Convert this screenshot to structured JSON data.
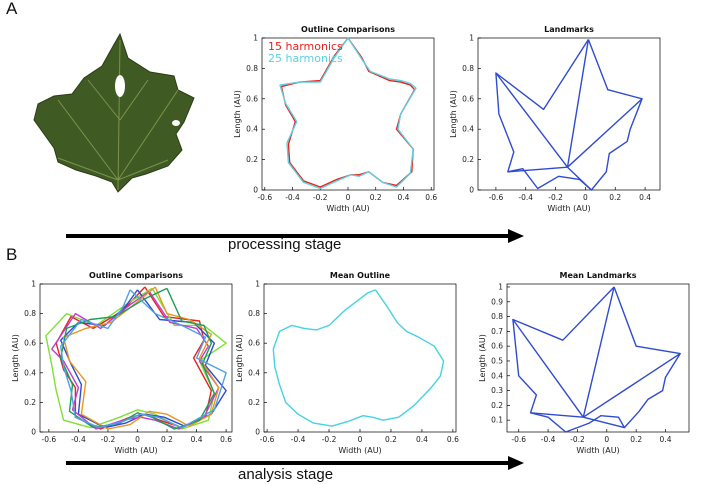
{
  "figure": {
    "panel_a_letter": "A",
    "panel_b_letter": "B",
    "stage_a_label": "processing stage",
    "stage_b_label": "analysis stage",
    "leaf_photo": "maple-leaf-photo",
    "colors": {
      "leaf_dark": "#3f5a22",
      "harmonic15": "#e8231e",
      "harmonic25": "#5ecfe0",
      "landmarks": "#2f4bd0",
      "mean_outline": "#45d3e0"
    }
  },
  "chart_data": [
    {
      "id": "outline-comparisons-a",
      "type": "line",
      "title": "Outline Comparisons",
      "xlabel": "Width (AU)",
      "ylabel": "Length (AU)",
      "xlim": [
        -0.62,
        0.62
      ],
      "ylim": [
        0,
        1
      ],
      "xticks": [
        -0.6,
        -0.4,
        -0.2,
        0,
        0.2,
        0.4,
        0.6
      ],
      "xtick_labels": [
        "-0.6",
        "-0.4",
        "-0.2",
        "0",
        "0.2",
        "0.4",
        "0.6"
      ],
      "yticks": [
        0,
        0.2,
        0.4,
        0.6,
        0.8,
        1
      ],
      "ytick_labels": [
        "0",
        "0.2",
        "0.4",
        "0.6",
        "0.8",
        "1"
      ],
      "grid": false,
      "legend": "top-left",
      "series": [
        {
          "name": "15 harmonics",
          "color": "#e8231e",
          "x": [
            0,
            0.1,
            0.15,
            0.3,
            0.38,
            0.45,
            0.48,
            0.38,
            0.35,
            0.47,
            0.46,
            0.35,
            0.25,
            0.15,
            0.08,
            0.02,
            -0.08,
            -0.2,
            -0.32,
            -0.42,
            -0.43,
            -0.38,
            -0.45,
            -0.48,
            -0.35,
            -0.2,
            -0.1,
            0
          ],
          "y": [
            1,
            0.87,
            0.78,
            0.72,
            0.71,
            0.69,
            0.66,
            0.5,
            0.4,
            0.27,
            0.12,
            0.03,
            0.05,
            0.12,
            0.1,
            0.1,
            0.07,
            0.02,
            0.06,
            0.18,
            0.3,
            0.45,
            0.56,
            0.68,
            0.71,
            0.72,
            0.88,
            1
          ]
        },
        {
          "name": "25 harmonics",
          "color": "#5ecfe0",
          "x": [
            0,
            0.1,
            0.16,
            0.3,
            0.38,
            0.45,
            0.49,
            0.38,
            0.36,
            0.47,
            0.45,
            0.35,
            0.25,
            0.15,
            0.08,
            0.02,
            -0.08,
            -0.2,
            -0.32,
            -0.43,
            -0.44,
            -0.37,
            -0.45,
            -0.49,
            -0.35,
            -0.2,
            -0.1,
            0
          ],
          "y": [
            1,
            0.86,
            0.78,
            0.73,
            0.72,
            0.7,
            0.67,
            0.5,
            0.4,
            0.27,
            0.11,
            0.02,
            0.05,
            0.12,
            0.09,
            0.1,
            0.06,
            0.01,
            0.05,
            0.18,
            0.31,
            0.45,
            0.57,
            0.69,
            0.71,
            0.71,
            0.87,
            1
          ]
        }
      ]
    },
    {
      "id": "landmarks-a",
      "type": "line",
      "title": "Landmarks",
      "xlabel": "Width (AU)",
      "ylabel": "Length (AU)",
      "xlim": [
        -0.72,
        0.5
      ],
      "ylim": [
        0,
        1
      ],
      "xticks": [
        -0.6,
        -0.4,
        -0.2,
        0,
        0.2,
        0.4
      ],
      "xtick_labels": [
        "-0.6",
        "-0.4",
        "-0.2",
        "0",
        "0.2",
        "0.4"
      ],
      "yticks": [
        0,
        0.2,
        0.4,
        0.6,
        0.8,
        1
      ],
      "ytick_labels": [
        "0",
        "0.2",
        "0.4",
        "0.6",
        "0.8",
        "1"
      ],
      "grid": false,
      "legend": "none",
      "series": [
        {
          "color": "#2f4bd0",
          "x": [
            0.02,
            0.15,
            0.38,
            0.3,
            0.28,
            0.16,
            0.14,
            0.04,
            -0.04,
            -0.18,
            -0.32,
            -0.42,
            -0.52,
            -0.48,
            -0.58,
            -0.6,
            -0.28,
            0.02
          ],
          "y": [
            0.99,
            0.66,
            0.6,
            0.4,
            0.32,
            0.24,
            0.12,
            0,
            0.07,
            0.09,
            0.01,
            0.14,
            0.12,
            0.25,
            0.5,
            0.77,
            0.53,
            0.99
          ]
        },
        {
          "color": "#2f4bd0",
          "x": [
            -0.12,
            0.02
          ],
          "y": [
            0.15,
            0.99
          ]
        },
        {
          "color": "#2f4bd0",
          "x": [
            -0.12,
            0.38
          ],
          "y": [
            0.15,
            0.6
          ]
        },
        {
          "color": "#2f4bd0",
          "x": [
            -0.12,
            -0.6
          ],
          "y": [
            0.15,
            0.77
          ]
        },
        {
          "color": "#2f4bd0",
          "x": [
            -0.12,
            -0.52
          ],
          "y": [
            0.15,
            0.12
          ]
        },
        {
          "color": "#2f4bd0",
          "x": [
            -0.12,
            0.04
          ],
          "y": [
            0.15,
            0
          ]
        }
      ]
    },
    {
      "id": "outline-comparisons-b",
      "type": "line",
      "title": "Outline Comparisons",
      "xlabel": "Width (AU)",
      "ylabel": "Length (AU)",
      "xlim": [
        -0.66,
        0.64
      ],
      "ylim": [
        0,
        1
      ],
      "xticks": [
        -0.6,
        -0.4,
        -0.2,
        0,
        0.2,
        0.4,
        0.6
      ],
      "xtick_labels": [
        "-0.6",
        "-0.4",
        "-0.2",
        "0",
        "0.2",
        "0.4",
        "0.6"
      ],
      "yticks": [
        0,
        0.2,
        0.4,
        0.6,
        0.8,
        1
      ],
      "ytick_labels": [
        "0",
        "0.2",
        "0.4",
        "0.6",
        "0.8",
        "1"
      ],
      "grid": false,
      "legend": "none",
      "series": [
        {
          "color": "#e8231e",
          "x": [
            0.05,
            0.18,
            0.42,
            0.45,
            0.38,
            0.5,
            0.46,
            0.3,
            0.15,
            0.05,
            -0.05,
            -0.25,
            -0.42,
            -0.42,
            -0.5,
            -0.55,
            -0.45,
            -0.3,
            -0.1,
            0.05
          ],
          "y": [
            0.98,
            0.78,
            0.75,
            0.62,
            0.5,
            0.28,
            0.1,
            0.03,
            0.08,
            0.12,
            0.1,
            0.02,
            0.1,
            0.3,
            0.42,
            0.6,
            0.78,
            0.7,
            0.82,
            0.98
          ]
        },
        {
          "color": "#7ee035",
          "x": [
            0.1,
            0.25,
            0.45,
            0.6,
            0.42,
            0.52,
            0.48,
            0.3,
            0.12,
            0.0,
            -0.12,
            -0.32,
            -0.5,
            -0.55,
            -0.58,
            -0.62,
            -0.48,
            -0.28,
            -0.05,
            0.1
          ],
          "y": [
            0.97,
            0.72,
            0.72,
            0.6,
            0.48,
            0.26,
            0.08,
            0.02,
            0.12,
            0.15,
            0.1,
            0.03,
            0.08,
            0.28,
            0.45,
            0.65,
            0.8,
            0.72,
            0.88,
            0.97
          ]
        },
        {
          "color": "#2f4bd0",
          "x": [
            0.0,
            0.15,
            0.38,
            0.52,
            0.46,
            0.6,
            0.5,
            0.32,
            0.18,
            0.05,
            -0.08,
            -0.22,
            -0.4,
            -0.38,
            -0.45,
            -0.52,
            -0.4,
            -0.22,
            -0.08,
            0.0
          ],
          "y": [
            0.96,
            0.76,
            0.74,
            0.6,
            0.45,
            0.28,
            0.12,
            0.04,
            0.1,
            0.12,
            0.06,
            0.03,
            0.12,
            0.32,
            0.46,
            0.62,
            0.74,
            0.72,
            0.85,
            0.96
          ]
        },
        {
          "color": "#c23ad6",
          "x": [
            0.08,
            0.22,
            0.4,
            0.48,
            0.42,
            0.55,
            0.45,
            0.28,
            0.12,
            0.02,
            -0.1,
            -0.28,
            -0.44,
            -0.4,
            -0.5,
            -0.58,
            -0.42,
            -0.25,
            -0.05,
            0.08
          ],
          "y": [
            0.95,
            0.74,
            0.7,
            0.58,
            0.48,
            0.3,
            0.1,
            0.02,
            0.08,
            0.1,
            0.08,
            0.02,
            0.15,
            0.3,
            0.48,
            0.56,
            0.8,
            0.7,
            0.86,
            0.95
          ]
        },
        {
          "color": "#e99522",
          "x": [
            0.12,
            0.2,
            0.35,
            0.5,
            0.42,
            0.55,
            0.5,
            0.35,
            0.2,
            0.08,
            -0.05,
            -0.2,
            -0.38,
            -0.35,
            -0.46,
            -0.5,
            -0.35,
            -0.18,
            0.0,
            0.12
          ],
          "y": [
            0.98,
            0.8,
            0.76,
            0.66,
            0.5,
            0.3,
            0.12,
            0.04,
            0.12,
            0.14,
            0.05,
            0.02,
            0.12,
            0.34,
            0.48,
            0.64,
            0.7,
            0.74,
            0.88,
            0.98
          ]
        },
        {
          "color": "#1c9d58",
          "x": [
            0.2,
            0.3,
            0.45,
            0.5,
            0.44,
            0.52,
            0.42,
            0.25,
            0.1,
            0.0,
            -0.12,
            -0.3,
            -0.46,
            -0.44,
            -0.52,
            -0.48,
            -0.32,
            -0.15,
            0.05,
            0.2
          ],
          "y": [
            0.97,
            0.75,
            0.72,
            0.6,
            0.46,
            0.26,
            0.08,
            0.02,
            0.1,
            0.13,
            0.06,
            0.03,
            0.14,
            0.32,
            0.5,
            0.7,
            0.76,
            0.78,
            0.9,
            0.97
          ]
        },
        {
          "color": "#4fa0e8",
          "x": [
            -0.05,
            0.12,
            0.3,
            0.46,
            0.4,
            0.6,
            0.52,
            0.3,
            0.14,
            0.02,
            -0.1,
            -0.26,
            -0.42,
            -0.45,
            -0.5,
            -0.52,
            -0.38,
            -0.2,
            -0.1,
            -0.05
          ],
          "y": [
            0.96,
            0.8,
            0.72,
            0.64,
            0.5,
            0.4,
            0.15,
            0.03,
            0.1,
            0.12,
            0.07,
            0.03,
            0.1,
            0.28,
            0.44,
            0.58,
            0.76,
            0.7,
            0.84,
            0.96
          ]
        }
      ]
    },
    {
      "id": "mean-outline",
      "type": "line",
      "title": "Mean Outline",
      "xlabel": "Width (AU)",
      "ylabel": "Length (AU)",
      "xlim": [
        -0.62,
        0.62
      ],
      "ylim": [
        0,
        1
      ],
      "xticks": [
        -0.6,
        -0.4,
        -0.2,
        0,
        0.2,
        0.4,
        0.6
      ],
      "xtick_labels": [
        "-0.6",
        "-0.4",
        "-0.2",
        "0",
        "0.2",
        "0.4",
        "0.6"
      ],
      "yticks": [
        0,
        0.2,
        0.4,
        0.6,
        0.8,
        1
      ],
      "ytick_labels": [
        "0",
        "0.2",
        "0.4",
        "0.6",
        "0.8",
        "1"
      ],
      "grid": false,
      "legend": "none",
      "series": [
        {
          "color": "#45d3e0",
          "x": [
            0.1,
            0.18,
            0.24,
            0.3,
            0.38,
            0.48,
            0.54,
            0.52,
            0.46,
            0.35,
            0.25,
            0.15,
            0.08,
            0.02,
            -0.08,
            -0.18,
            -0.3,
            -0.4,
            -0.48,
            -0.52,
            -0.55,
            -0.56,
            -0.52,
            -0.44,
            -0.36,
            -0.28,
            -0.2,
            -0.1,
            0.0,
            0.05,
            0.1
          ],
          "y": [
            0.96,
            0.84,
            0.74,
            0.68,
            0.64,
            0.58,
            0.48,
            0.38,
            0.3,
            0.18,
            0.1,
            0.08,
            0.1,
            0.11,
            0.07,
            0.04,
            0.06,
            0.12,
            0.2,
            0.32,
            0.44,
            0.56,
            0.68,
            0.72,
            0.7,
            0.69,
            0.72,
            0.82,
            0.9,
            0.94,
            0.96
          ]
        }
      ]
    },
    {
      "id": "mean-landmarks",
      "type": "line",
      "title": "Mean Landmarks",
      "xlabel": "Width (AU)",
      "ylabel": "Length (AU)",
      "xlim": [
        -0.68,
        0.56
      ],
      "ylim": [
        0.02,
        1.02
      ],
      "xticks": [
        -0.6,
        -0.4,
        -0.2,
        0,
        0.2,
        0.4
      ],
      "xtick_labels": [
        "-0.6",
        "-0.4",
        "-0.2",
        "0",
        "0.2",
        "0.4"
      ],
      "yticks": [
        0.1,
        0.2,
        0.3,
        0.4,
        0.5,
        0.6,
        0.7,
        0.8,
        0.9,
        1
      ],
      "ytick_labels": [
        "0.1",
        "0.2",
        "0.3",
        "0.4",
        "0.5",
        "0.6",
        "0.7",
        "0.8",
        "0.9",
        "1"
      ],
      "grid": false,
      "legend": "none",
      "series": [
        {
          "color": "#2f4bd0",
          "x": [
            0.05,
            0.2,
            0.5,
            0.4,
            0.38,
            0.28,
            0.22,
            0.12,
            0.08,
            -0.04,
            -0.12,
            -0.28,
            -0.4,
            -0.52,
            -0.48,
            -0.6,
            -0.64,
            -0.3,
            0.05
          ],
          "y": [
            1,
            0.6,
            0.55,
            0.39,
            0.3,
            0.24,
            0.16,
            0.05,
            0.12,
            0.13,
            0.08,
            0.02,
            0.12,
            0.15,
            0.27,
            0.4,
            0.78,
            0.64,
            1
          ]
        },
        {
          "color": "#2f4bd0",
          "x": [
            -0.16,
            0.05
          ],
          "y": [
            0.12,
            1
          ]
        },
        {
          "color": "#2f4bd0",
          "x": [
            -0.16,
            0.5
          ],
          "y": [
            0.12,
            0.55
          ]
        },
        {
          "color": "#2f4bd0",
          "x": [
            -0.16,
            -0.64
          ],
          "y": [
            0.12,
            0.78
          ]
        },
        {
          "color": "#2f4bd0",
          "x": [
            -0.16,
            -0.52
          ],
          "y": [
            0.12,
            0.15
          ]
        },
        {
          "color": "#2f4bd0",
          "x": [
            -0.16,
            0.12
          ],
          "y": [
            0.12,
            0.05
          ]
        }
      ]
    }
  ]
}
